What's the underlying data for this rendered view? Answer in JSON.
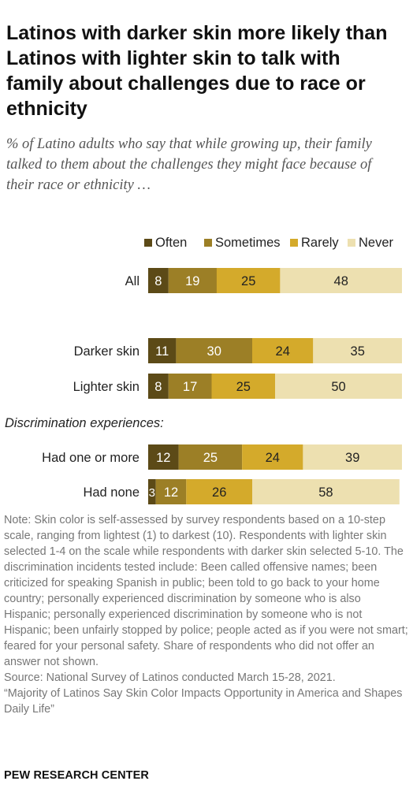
{
  "title": "Latinos with darker skin more likely than Latinos with lighter skin to talk with family about challenges due to race or ethnicity",
  "subtitle": "% of Latino adults who say that while growing up, their family talked to them about the challenges they might face because of their race or ethnicity …",
  "note": "Note: Skin color is self-assessed by survey respondents based on a 10-step scale, ranging from lightest (1) to darkest (10). Respondents with lighter skin selected 1-4 on the scale while respondents with darker skin selected 5-10. The discrimination incidents tested include: Been called offensive names; been criticized for speaking Spanish in public; been told to go back to your home country; personally experienced discrimination by someone who is also Hispanic; personally experienced discrimination by someone who is not Hispanic; been unfairly stopped by police; people acted as if you were not smart; feared for your personal safety. Share of respondents who did not offer an answer not shown.",
  "source": "Source: National Survey of Latinos conducted March 15-28, 2021.",
  "report": "“Majority of Latinos Say Skin Color Impacts Opportunity in America and Shapes Daily Life”",
  "footer": "PEW RESEARCH CENTER",
  "chart_data": {
    "type": "bar",
    "orientation": "horizontal",
    "stacked": true,
    "legend_position": "top",
    "xlim": [
      0,
      100
    ],
    "grid": false,
    "series": [
      {
        "name": "Often",
        "color": "#5c4a17"
      },
      {
        "name": "Sometimes",
        "color": "#9c7f26"
      },
      {
        "name": "Rarely",
        "color": "#d4aa2b"
      },
      {
        "name": "Never",
        "color": "#ede0b0"
      }
    ],
    "group_label": "Discrimination experiences:",
    "categories": [
      "All",
      "Darker skin",
      "Lighter skin",
      "Had one or more",
      "Had none"
    ],
    "values": [
      [
        8,
        19,
        25,
        48
      ],
      [
        11,
        30,
        24,
        35
      ],
      [
        8,
        17,
        25,
        50
      ],
      [
        12,
        25,
        24,
        39
      ],
      [
        3,
        12,
        26,
        58
      ]
    ]
  }
}
